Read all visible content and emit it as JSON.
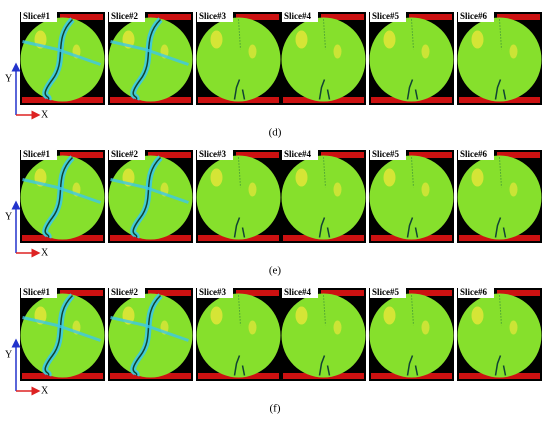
{
  "panels": [
    {
      "label": "(d)",
      "y_axis": "Y",
      "x_axis": "X",
      "slices": [
        "Slice#1",
        "Slice#2",
        "Slice#3",
        "Slice#4",
        "Slice#5",
        "Slice#6"
      ]
    },
    {
      "label": "(e)",
      "y_axis": "Y",
      "x_axis": "X",
      "slices": [
        "Slice#1",
        "Slice#2",
        "Slice#3",
        "Slice#4",
        "Slice#5",
        "Slice#6"
      ]
    },
    {
      "label": "(f)",
      "y_axis": "Y",
      "x_axis": "X",
      "slices": [
        "Slice#1",
        "Slice#2",
        "Slice#3",
        "Slice#4",
        "Slice#5",
        "Slice#6"
      ]
    }
  ]
}
